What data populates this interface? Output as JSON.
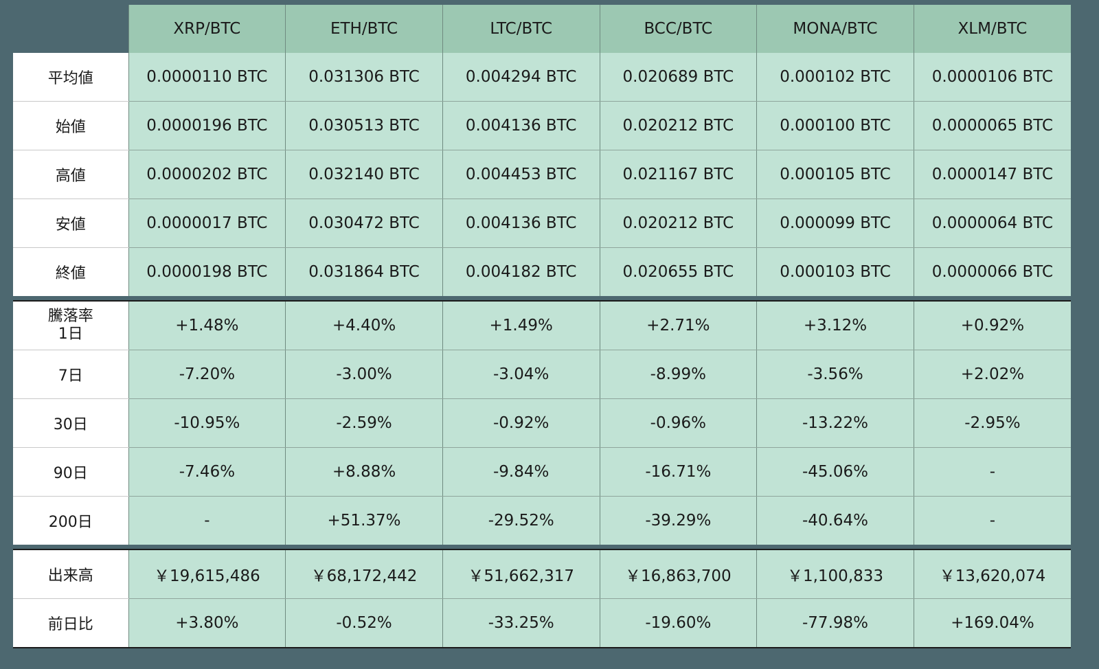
{
  "header": {
    "columns": [
      "XRP/BTC",
      "ETH/BTC",
      "LTC/BTC",
      "BCC/BTC",
      "MONA/BTC",
      "XLM/BTC"
    ]
  },
  "prices": {
    "rows": [
      {
        "label": "平均値",
        "values": [
          "0.0000110 BTC",
          "0.031306 BTC",
          "0.004294 BTC",
          "0.020689 BTC",
          "0.000102 BTC",
          "0.0000106 BTC"
        ]
      },
      {
        "label": "始値",
        "values": [
          "0.0000196 BTC",
          "0.030513 BTC",
          "0.004136 BTC",
          "0.020212 BTC",
          "0.000100 BTC",
          "0.0000065 BTC"
        ]
      },
      {
        "label": "高値",
        "values": [
          "0.0000202 BTC",
          "0.032140 BTC",
          "0.004453 BTC",
          "0.021167 BTC",
          "0.000105 BTC",
          "0.0000147 BTC"
        ]
      },
      {
        "label": "安値",
        "values": [
          "0.0000017 BTC",
          "0.030472 BTC",
          "0.004136 BTC",
          "0.020212 BTC",
          "0.000099 BTC",
          "0.0000064 BTC"
        ]
      },
      {
        "label": "終値",
        "values": [
          "0.0000198 BTC",
          "0.031864 BTC",
          "0.004182 BTC",
          "0.020655 BTC",
          "0.000103 BTC",
          "0.0000066 BTC"
        ]
      }
    ]
  },
  "changes": {
    "title": "騰落率",
    "rows": [
      {
        "label": "1日",
        "values": [
          "+1.48%",
          "+4.40%",
          "+1.49%",
          "+2.71%",
          "+3.12%",
          "+0.92%"
        ]
      },
      {
        "label": "7日",
        "values": [
          "-7.20%",
          "-3.00%",
          "-3.04%",
          "-8.99%",
          "-3.56%",
          "+2.02%"
        ]
      },
      {
        "label": "30日",
        "values": [
          "-10.95%",
          "-2.59%",
          "-0.92%",
          "-0.96%",
          "-13.22%",
          "-2.95%"
        ]
      },
      {
        "label": "90日",
        "values": [
          "-7.46%",
          "+8.88%",
          "-9.84%",
          "-16.71%",
          "-45.06%",
          "-"
        ]
      },
      {
        "label": "200日",
        "values": [
          "-",
          "+51.37%",
          "-29.52%",
          "-39.29%",
          "-40.64%",
          "-"
        ]
      }
    ]
  },
  "volume": {
    "rows": [
      {
        "label": "出来高",
        "values": [
          "￥19,615,486",
          "￥68,172,442",
          "￥51,662,317",
          "￥16,863,700",
          "￥1,100,833",
          "￥13,620,074"
        ]
      },
      {
        "label": "前日比",
        "values": [
          "+3.80%",
          "-0.52%",
          "-33.25%",
          "-19.60%",
          "-77.98%",
          "+169.04%"
        ]
      }
    ]
  },
  "colors": {
    "background": "#4d6870",
    "header_cell": "#9cc8b2",
    "data_cell": "#c1e3d5",
    "label_cell": "#ffffff"
  }
}
